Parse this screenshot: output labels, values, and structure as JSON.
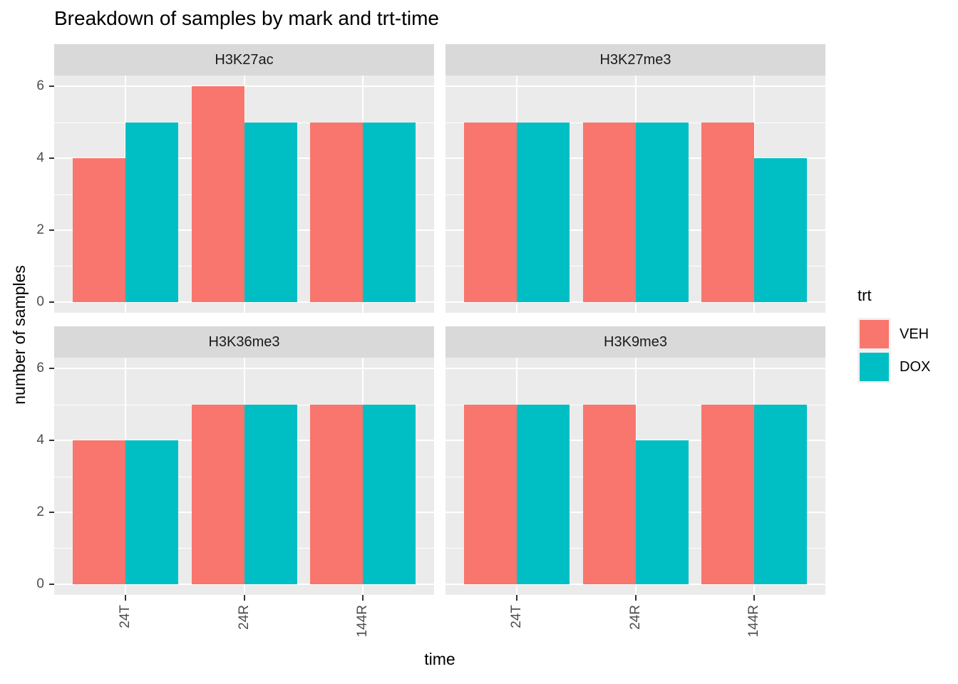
{
  "chart_data": {
    "type": "bar",
    "title": "Breakdown of samples by mark and trt-time",
    "xlabel": "time",
    "ylabel": "number of samples",
    "facet_variable": "mark",
    "categories": [
      "24T",
      "24R",
      "144R"
    ],
    "y_ticks": [
      0,
      2,
      4,
      6
    ],
    "ylim": [
      -0.3,
      6.3
    ],
    "grid": true,
    "bar_layout": "dodged",
    "panels": [
      {
        "facet": "H3K27ac",
        "series": [
          {
            "name": "VEH",
            "values": [
              4,
              6,
              5
            ]
          },
          {
            "name": "DOX",
            "values": [
              5,
              5,
              5
            ]
          }
        ]
      },
      {
        "facet": "H3K27me3",
        "series": [
          {
            "name": "VEH",
            "values": [
              5,
              5,
              5
            ]
          },
          {
            "name": "DOX",
            "values": [
              5,
              5,
              4
            ]
          }
        ]
      },
      {
        "facet": "H3K36me3",
        "series": [
          {
            "name": "VEH",
            "values": [
              4,
              5,
              5
            ]
          },
          {
            "name": "DOX",
            "values": [
              4,
              5,
              5
            ]
          }
        ]
      },
      {
        "facet": "H3K9me3",
        "series": [
          {
            "name": "VEH",
            "values": [
              5,
              5,
              5
            ]
          },
          {
            "name": "DOX",
            "values": [
              5,
              4,
              5
            ]
          }
        ]
      }
    ],
    "legend": {
      "title": "trt",
      "position": "right",
      "entries": [
        {
          "label": "VEH",
          "color": "#F8766D"
        },
        {
          "label": "DOX",
          "color": "#00BFC4"
        }
      ]
    },
    "theme": {
      "panel_background": "#EBEBEB",
      "strip_background": "#D9D9D9",
      "grid_color": "#FFFFFF",
      "tick_label_color": "#4D4D4D",
      "tick_mark_color": "#333333"
    }
  }
}
